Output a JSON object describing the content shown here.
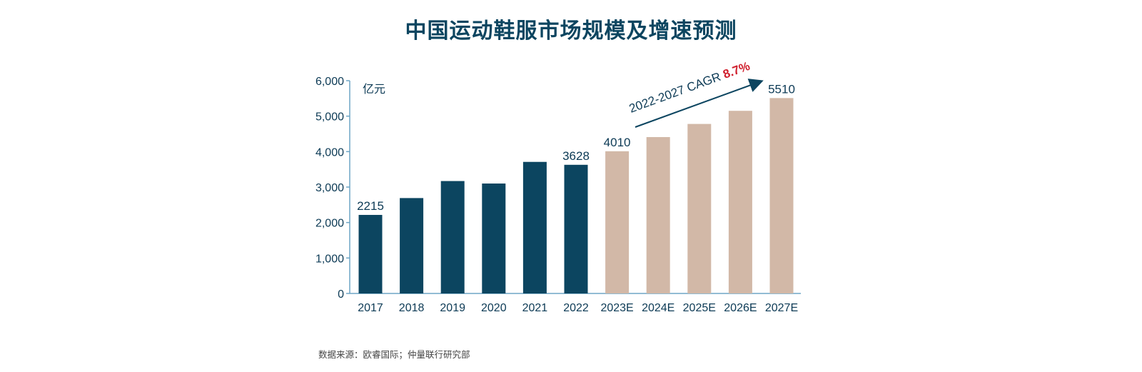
{
  "chart_data": {
    "type": "bar",
    "title": "中国运动鞋服市场规模及增速预测",
    "ylabel": "亿元",
    "xlabel": "",
    "ylim": [
      0,
      6000
    ],
    "yticks": [
      0,
      1000,
      2000,
      3000,
      4000,
      5000,
      6000
    ],
    "ytick_labels": [
      "0",
      "1,000",
      "2,000",
      "3,000",
      "4,000",
      "5,000",
      "6,000"
    ],
    "categories": [
      "2017",
      "2018",
      "2019",
      "2020",
      "2021",
      "2022",
      "2023E",
      "2024E",
      "2025E",
      "2026E",
      "2027E"
    ],
    "values": [
      2215,
      2690,
      3170,
      3100,
      3710,
      3628,
      4010,
      4410,
      4780,
      5150,
      5510
    ],
    "forecast": [
      false,
      false,
      false,
      false,
      false,
      false,
      true,
      true,
      true,
      true,
      true
    ],
    "data_labels": {
      "0": "2215",
      "5": "3628",
      "6": "4010",
      "10": "5510"
    },
    "annotation": {
      "text": "2022-2027 CAGR ",
      "highlight": "8.7%"
    },
    "grid": false,
    "colors": {
      "actual": "#0c4560",
      "forecast": "#d2b8a7",
      "highlight": "#d0202e",
      "axis": "#6fa6c6",
      "text": "#0c3a55"
    }
  },
  "source": "数据来源：欧睿国际；仲量联行研究部"
}
